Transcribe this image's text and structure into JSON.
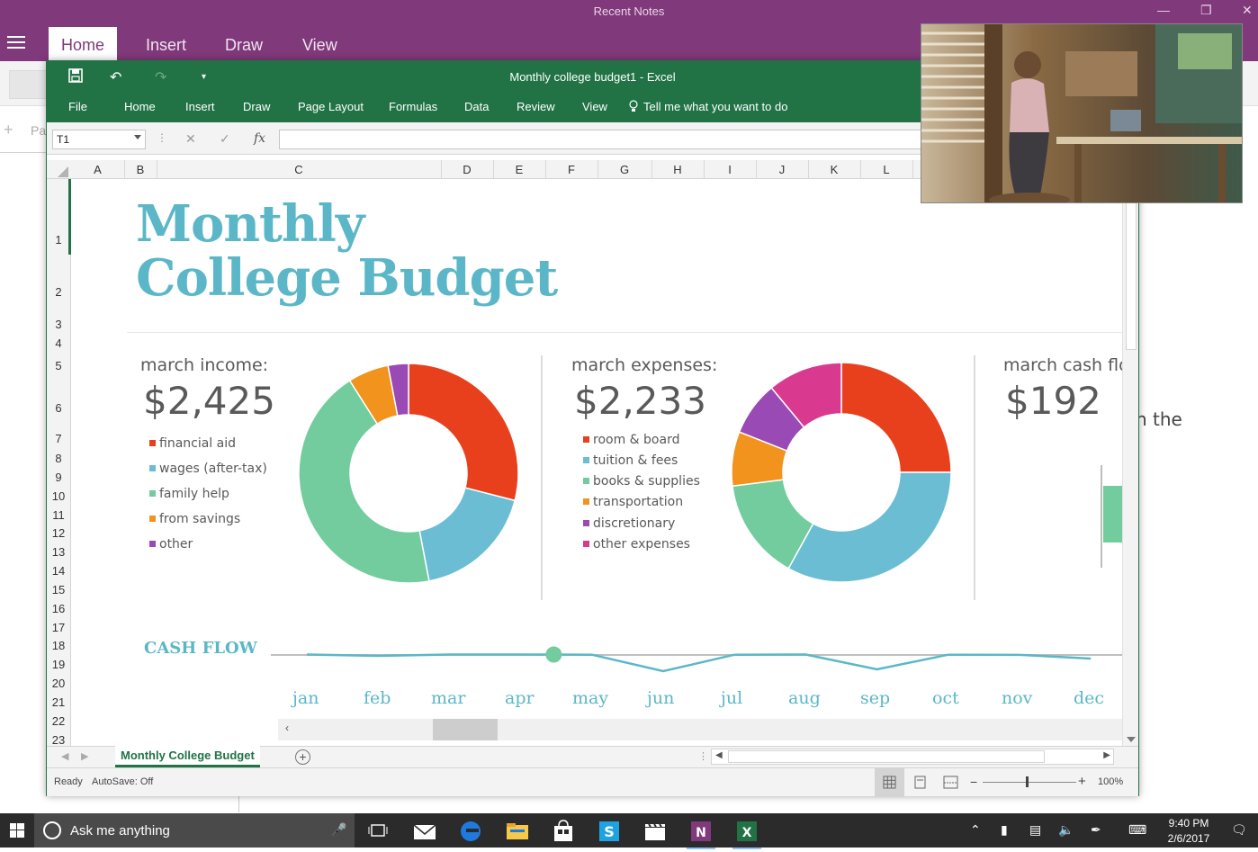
{
  "onenote": {
    "window_title": "Recent Notes",
    "tabs": [
      "Home",
      "Insert",
      "Draw",
      "View"
    ],
    "active_tab": "Home",
    "sidebar_placeholder": "Pa",
    "right_text": "n the"
  },
  "excel": {
    "doc_title": "Monthly college budget1  -  Excel",
    "menu": [
      "File",
      "Home",
      "Insert",
      "Draw",
      "Page Layout",
      "Formulas",
      "Data",
      "Review",
      "View"
    ],
    "tell_me": "Tell me what you want to do",
    "name_box": "T1",
    "fx_label": "fx",
    "columns": [
      "A",
      "B",
      "C",
      "D",
      "E",
      "F",
      "G",
      "H",
      "I",
      "J",
      "K",
      "L"
    ],
    "rows": [
      "1",
      "2",
      "3",
      "4",
      "5",
      "6",
      "7",
      "8",
      "9",
      "10",
      "11",
      "12",
      "13",
      "14",
      "15",
      "16",
      "17",
      "18",
      "19",
      "20",
      "21",
      "22",
      "23"
    ],
    "sheet_tab": "Monthly College Budget",
    "status_ready": "Ready",
    "status_autosave": "AutoSave: Off",
    "zoom": "100%",
    "accent": "#217346"
  },
  "budget": {
    "title_line1": "Monthly",
    "title_line2": "College Budget",
    "income": {
      "label": "march income:",
      "amount": "$2,425",
      "legend": [
        "financial aid",
        "wages (after-tax)",
        "family help",
        "from savings",
        "other"
      ]
    },
    "expenses": {
      "label": "march expenses:",
      "amount": "$2,233",
      "legend": [
        "room & board",
        "tuition & fees",
        "books & supplies",
        "transportation",
        "discretionary",
        "other expenses"
      ]
    },
    "cashflow": {
      "label": "march cash flow:",
      "amount": "$192"
    },
    "cashflow_heading": "CASH FLOW",
    "months": [
      "jan",
      "feb",
      "mar",
      "apr",
      "may",
      "jun",
      "jul",
      "aug",
      "sep",
      "oct",
      "nov",
      "dec"
    ]
  },
  "chart_data": [
    {
      "type": "pie",
      "title": "march income:",
      "categories": [
        "financial aid",
        "wages (after-tax)",
        "family help",
        "from savings",
        "other"
      ],
      "values": [
        29,
        18,
        44,
        6,
        3
      ],
      "colors": [
        "#e8401c",
        "#6bbdd4",
        "#72cc9d",
        "#f2931e",
        "#9a4ab5"
      ],
      "donut": true
    },
    {
      "type": "pie",
      "title": "march expenses:",
      "categories": [
        "room & board",
        "tuition & fees",
        "books & supplies",
        "transportation",
        "discretionary",
        "other expenses"
      ],
      "values": [
        25,
        33,
        15,
        8,
        8,
        11
      ],
      "colors": [
        "#e8401c",
        "#6bbdd4",
        "#72cc9d",
        "#f2931e",
        "#9a4ab5",
        "#d93a8f"
      ],
      "donut": true
    },
    {
      "type": "line",
      "title": "CASH FLOW",
      "categories": [
        "jan",
        "feb",
        "mar",
        "apr",
        "may",
        "jun",
        "jul",
        "aug",
        "sep",
        "oct",
        "nov",
        "dec"
      ],
      "values": [
        30,
        -10,
        192,
        20,
        10,
        -180,
        10,
        15,
        -160,
        10,
        5,
        -40
      ],
      "highlight": "mar",
      "color": "#5bb7c7"
    }
  ],
  "taskbar": {
    "search_placeholder": "Ask me anything",
    "time": "9:40 PM",
    "date": "2/6/2017"
  }
}
